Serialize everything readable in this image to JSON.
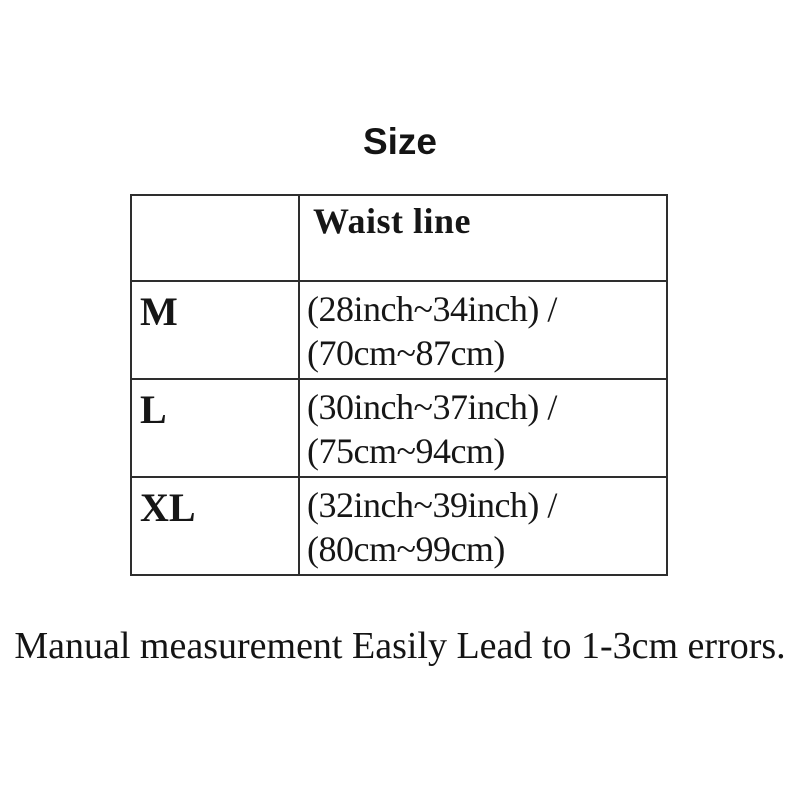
{
  "page": {
    "title": "Size",
    "note": "Manual measurement Easily Lead to 1-3cm errors."
  },
  "table": {
    "headers": {
      "size": "",
      "waist": "Waist line"
    },
    "rows": [
      {
        "size": "M",
        "waist_line1": "(28inch~34inch) /",
        "waist_line2": "(70cm~87cm)"
      },
      {
        "size": "L",
        "waist_line1": "(30inch~37inch) /",
        "waist_line2": "(75cm~94cm)"
      },
      {
        "size": "XL",
        "waist_line1": "(32inch~39inch) /",
        "waist_line2": "(80cm~99cm)"
      }
    ]
  },
  "colors": {
    "text": "#161616",
    "border": "#2e2e2e",
    "background": "#ffffff"
  }
}
